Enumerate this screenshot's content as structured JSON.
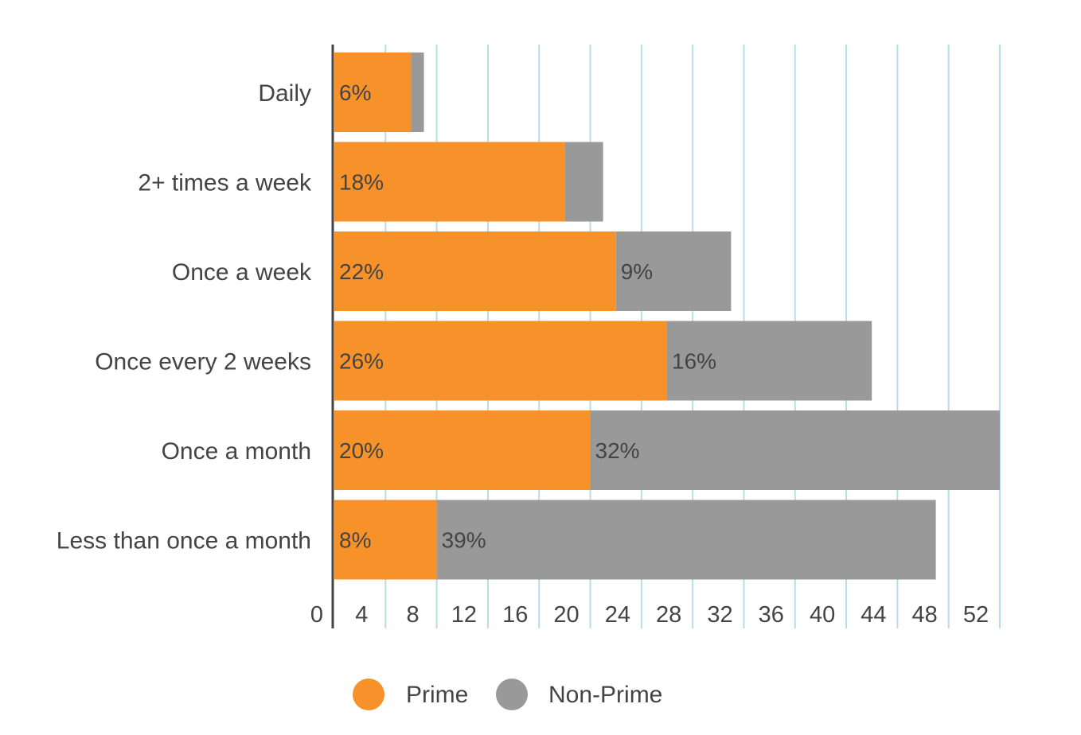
{
  "chart_data": {
    "type": "bar",
    "orientation": "horizontal",
    "stacked": true,
    "categories": [
      "Daily",
      "2+ times a week",
      "Once a week",
      "Once every 2 weeks",
      "Once a month",
      "Less than once a month"
    ],
    "series": [
      {
        "name": "Prime",
        "color": "#F7922A",
        "values": [
          6,
          18,
          22,
          26,
          20,
          8
        ],
        "labels": [
          "6%",
          "18%",
          "22%",
          "26%",
          "20%",
          "8%"
        ]
      },
      {
        "name": "Non-Prime",
        "color": "#999999",
        "values": [
          1,
          3,
          9,
          16,
          32,
          39
        ],
        "labels": [
          "",
          "",
          "9%",
          "16%",
          "32%",
          "39%"
        ]
      }
    ],
    "xlim": [
      0,
      52
    ],
    "xticks": [
      0,
      4,
      8,
      12,
      16,
      20,
      24,
      28,
      32,
      36,
      40,
      44,
      48,
      52
    ],
    "grid": true,
    "grid_color": "#B9DCEB",
    "legend": "bottom",
    "title": "",
    "xlabel": "",
    "ylabel": ""
  }
}
